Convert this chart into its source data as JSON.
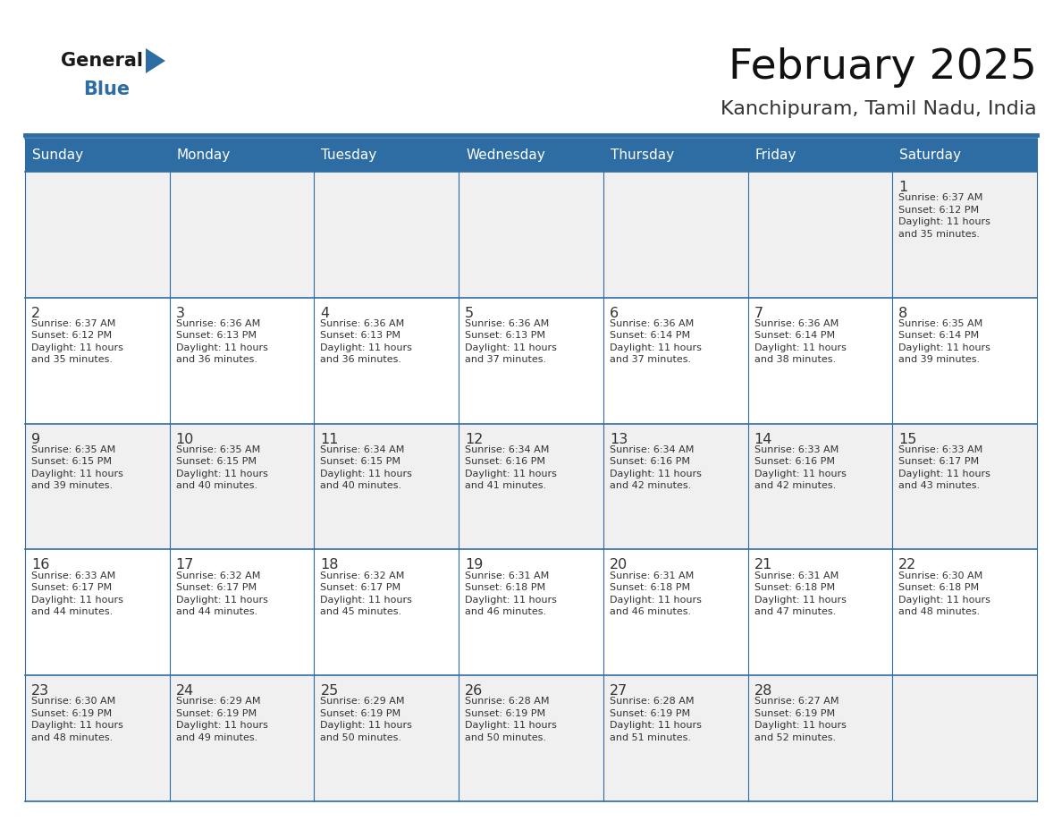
{
  "title": "February 2025",
  "subtitle": "Kanchipuram, Tamil Nadu, India",
  "header_bg": "#2E6DA4",
  "header_text_color": "#FFFFFF",
  "day_names": [
    "Sunday",
    "Monday",
    "Tuesday",
    "Wednesday",
    "Thursday",
    "Friday",
    "Saturday"
  ],
  "alt_row_bg": "#F0F0F0",
  "white_bg": "#FFFFFF",
  "border_color": "#2E6DA4",
  "text_color": "#333333",
  "days": [
    {
      "date": 1,
      "col": 6,
      "row": 0,
      "sunrise": "6:37 AM",
      "sunset": "6:12 PM",
      "daylight_h": "11 hours",
      "daylight_m": "and 35 minutes."
    },
    {
      "date": 2,
      "col": 0,
      "row": 1,
      "sunrise": "6:37 AM",
      "sunset": "6:12 PM",
      "daylight_h": "11 hours",
      "daylight_m": "and 35 minutes."
    },
    {
      "date": 3,
      "col": 1,
      "row": 1,
      "sunrise": "6:36 AM",
      "sunset": "6:13 PM",
      "daylight_h": "11 hours",
      "daylight_m": "and 36 minutes."
    },
    {
      "date": 4,
      "col": 2,
      "row": 1,
      "sunrise": "6:36 AM",
      "sunset": "6:13 PM",
      "daylight_h": "11 hours",
      "daylight_m": "and 36 minutes."
    },
    {
      "date": 5,
      "col": 3,
      "row": 1,
      "sunrise": "6:36 AM",
      "sunset": "6:13 PM",
      "daylight_h": "11 hours",
      "daylight_m": "and 37 minutes."
    },
    {
      "date": 6,
      "col": 4,
      "row": 1,
      "sunrise": "6:36 AM",
      "sunset": "6:14 PM",
      "daylight_h": "11 hours",
      "daylight_m": "and 37 minutes."
    },
    {
      "date": 7,
      "col": 5,
      "row": 1,
      "sunrise": "6:36 AM",
      "sunset": "6:14 PM",
      "daylight_h": "11 hours",
      "daylight_m": "and 38 minutes."
    },
    {
      "date": 8,
      "col": 6,
      "row": 1,
      "sunrise": "6:35 AM",
      "sunset": "6:14 PM",
      "daylight_h": "11 hours",
      "daylight_m": "and 39 minutes."
    },
    {
      "date": 9,
      "col": 0,
      "row": 2,
      "sunrise": "6:35 AM",
      "sunset": "6:15 PM",
      "daylight_h": "11 hours",
      "daylight_m": "and 39 minutes."
    },
    {
      "date": 10,
      "col": 1,
      "row": 2,
      "sunrise": "6:35 AM",
      "sunset": "6:15 PM",
      "daylight_h": "11 hours",
      "daylight_m": "and 40 minutes."
    },
    {
      "date": 11,
      "col": 2,
      "row": 2,
      "sunrise": "6:34 AM",
      "sunset": "6:15 PM",
      "daylight_h": "11 hours",
      "daylight_m": "and 40 minutes."
    },
    {
      "date": 12,
      "col": 3,
      "row": 2,
      "sunrise": "6:34 AM",
      "sunset": "6:16 PM",
      "daylight_h": "11 hours",
      "daylight_m": "and 41 minutes."
    },
    {
      "date": 13,
      "col": 4,
      "row": 2,
      "sunrise": "6:34 AM",
      "sunset": "6:16 PM",
      "daylight_h": "11 hours",
      "daylight_m": "and 42 minutes."
    },
    {
      "date": 14,
      "col": 5,
      "row": 2,
      "sunrise": "6:33 AM",
      "sunset": "6:16 PM",
      "daylight_h": "11 hours",
      "daylight_m": "and 42 minutes."
    },
    {
      "date": 15,
      "col": 6,
      "row": 2,
      "sunrise": "6:33 AM",
      "sunset": "6:17 PM",
      "daylight_h": "11 hours",
      "daylight_m": "and 43 minutes."
    },
    {
      "date": 16,
      "col": 0,
      "row": 3,
      "sunrise": "6:33 AM",
      "sunset": "6:17 PM",
      "daylight_h": "11 hours",
      "daylight_m": "and 44 minutes."
    },
    {
      "date": 17,
      "col": 1,
      "row": 3,
      "sunrise": "6:32 AM",
      "sunset": "6:17 PM",
      "daylight_h": "11 hours",
      "daylight_m": "and 44 minutes."
    },
    {
      "date": 18,
      "col": 2,
      "row": 3,
      "sunrise": "6:32 AM",
      "sunset": "6:17 PM",
      "daylight_h": "11 hours",
      "daylight_m": "and 45 minutes."
    },
    {
      "date": 19,
      "col": 3,
      "row": 3,
      "sunrise": "6:31 AM",
      "sunset": "6:18 PM",
      "daylight_h": "11 hours",
      "daylight_m": "and 46 minutes."
    },
    {
      "date": 20,
      "col": 4,
      "row": 3,
      "sunrise": "6:31 AM",
      "sunset": "6:18 PM",
      "daylight_h": "11 hours",
      "daylight_m": "and 46 minutes."
    },
    {
      "date": 21,
      "col": 5,
      "row": 3,
      "sunrise": "6:31 AM",
      "sunset": "6:18 PM",
      "daylight_h": "11 hours",
      "daylight_m": "and 47 minutes."
    },
    {
      "date": 22,
      "col": 6,
      "row": 3,
      "sunrise": "6:30 AM",
      "sunset": "6:18 PM",
      "daylight_h": "11 hours",
      "daylight_m": "and 48 minutes."
    },
    {
      "date": 23,
      "col": 0,
      "row": 4,
      "sunrise": "6:30 AM",
      "sunset": "6:19 PM",
      "daylight_h": "11 hours",
      "daylight_m": "and 48 minutes."
    },
    {
      "date": 24,
      "col": 1,
      "row": 4,
      "sunrise": "6:29 AM",
      "sunset": "6:19 PM",
      "daylight_h": "11 hours",
      "daylight_m": "and 49 minutes."
    },
    {
      "date": 25,
      "col": 2,
      "row": 4,
      "sunrise": "6:29 AM",
      "sunset": "6:19 PM",
      "daylight_h": "11 hours",
      "daylight_m": "and 50 minutes."
    },
    {
      "date": 26,
      "col": 3,
      "row": 4,
      "sunrise": "6:28 AM",
      "sunset": "6:19 PM",
      "daylight_h": "11 hours",
      "daylight_m": "and 50 minutes."
    },
    {
      "date": 27,
      "col": 4,
      "row": 4,
      "sunrise": "6:28 AM",
      "sunset": "6:19 PM",
      "daylight_h": "11 hours",
      "daylight_m": "and 51 minutes."
    },
    {
      "date": 28,
      "col": 5,
      "row": 4,
      "sunrise": "6:27 AM",
      "sunset": "6:19 PM",
      "daylight_h": "11 hours",
      "daylight_m": "and 52 minutes."
    }
  ],
  "logo_text1": "General",
  "logo_text2": "Blue",
  "logo_color1": "#1a1a1a",
  "logo_color2": "#2E6DA4",
  "fig_width": 11.88,
  "fig_height": 9.18,
  "dpi": 100
}
